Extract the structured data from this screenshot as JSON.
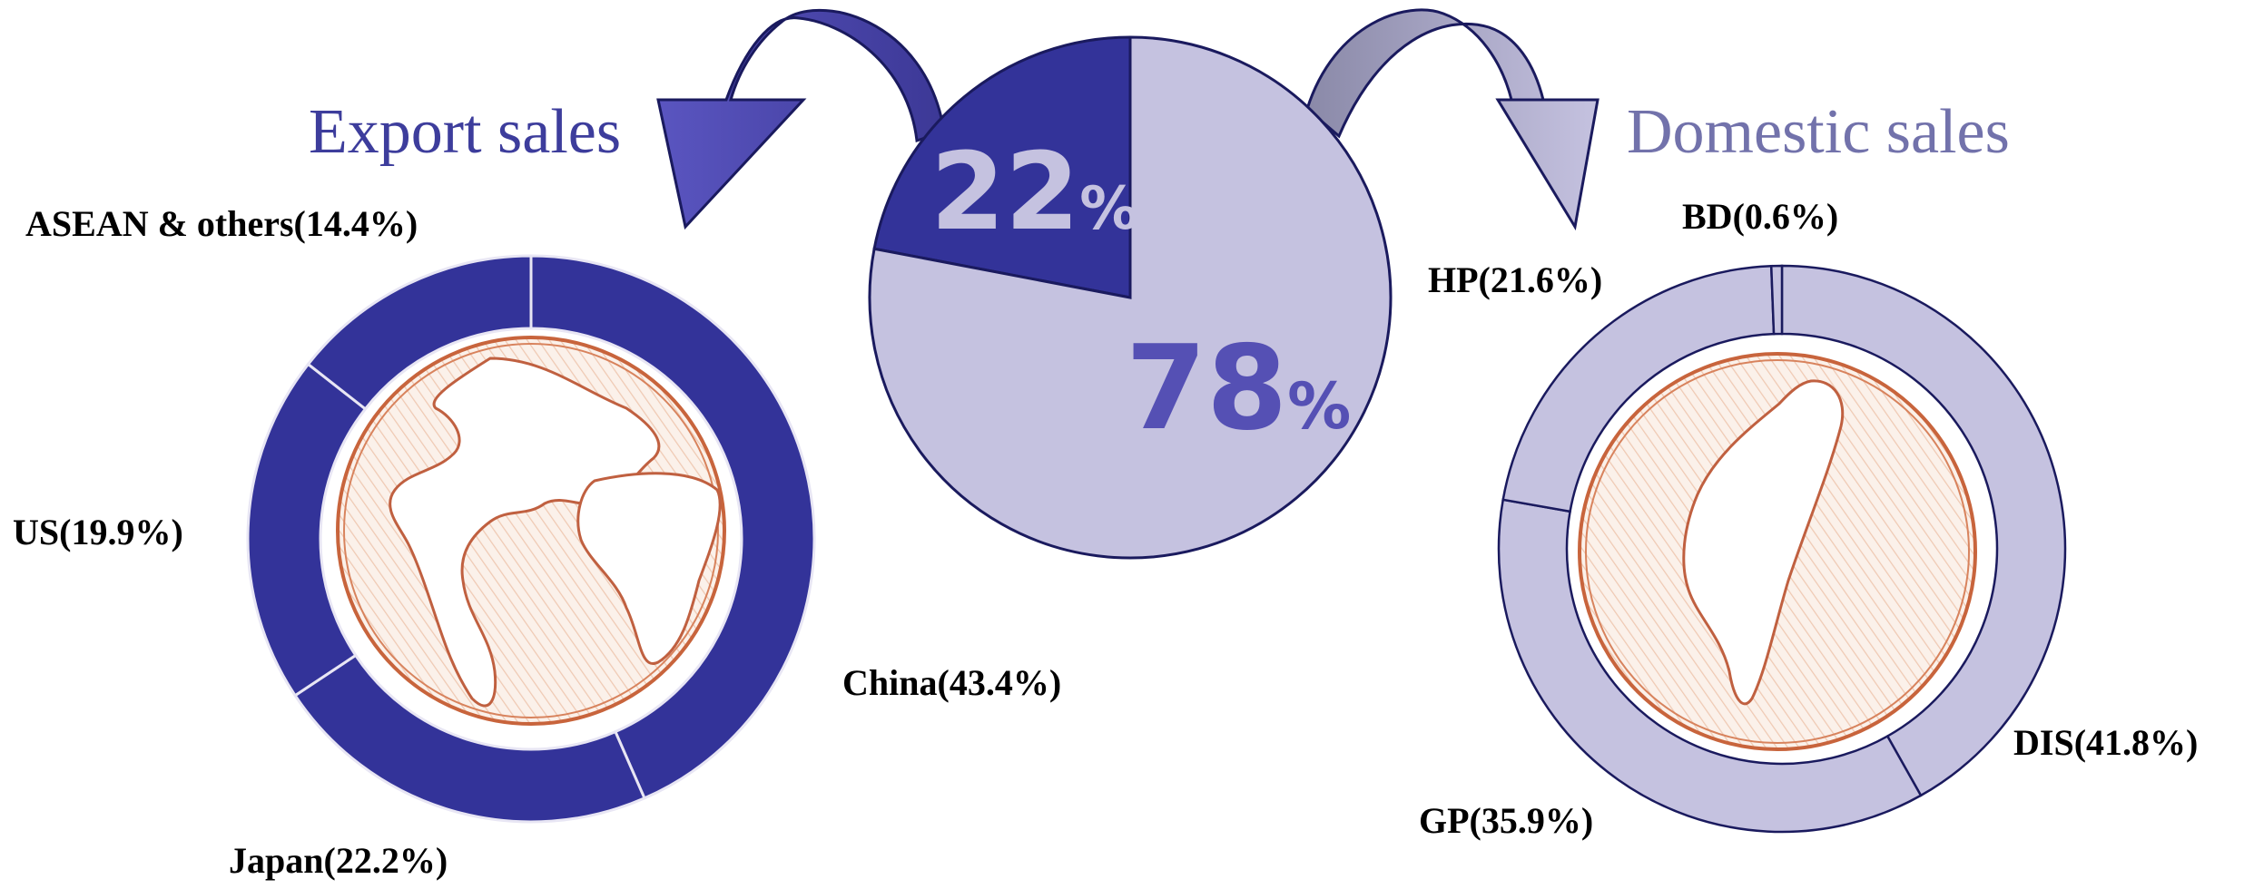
{
  "colors": {
    "export": "#333399",
    "domestic": "#c5c2e0",
    "domestic_text": "#7272ab",
    "export_text": "#3d3d9c",
    "outline": "#1a1a5e",
    "sketch": "#c8643c"
  },
  "icons": {
    "globe": "globe-sketch-icon",
    "taiwan": "taiwan-map-sketch-icon",
    "arrow_left": "curved-arrow-left-icon",
    "arrow_right": "curved-arrow-right-icon"
  },
  "chart_data": [
    {
      "type": "pie",
      "title": "",
      "labels": [
        "Export sales",
        "Domestic sales"
      ],
      "values": [
        22,
        78
      ],
      "value_labels": [
        "22%",
        "78%"
      ]
    },
    {
      "type": "pie",
      "title": "Export sales",
      "labels": [
        "China(43.4%)",
        "Japan(22.2%)",
        "US(19.9%)",
        "ASEAN & others(14.4%)"
      ],
      "values": [
        43.4,
        22.2,
        19.9,
        14.4
      ]
    },
    {
      "type": "pie",
      "title": "Domestic sales",
      "labels": [
        "DIS(41.8%)",
        "GP(35.9%)",
        "HP(21.6%)",
        "BD(0.6%)"
      ],
      "values": [
        41.8,
        35.9,
        21.6,
        0.6
      ]
    }
  ]
}
